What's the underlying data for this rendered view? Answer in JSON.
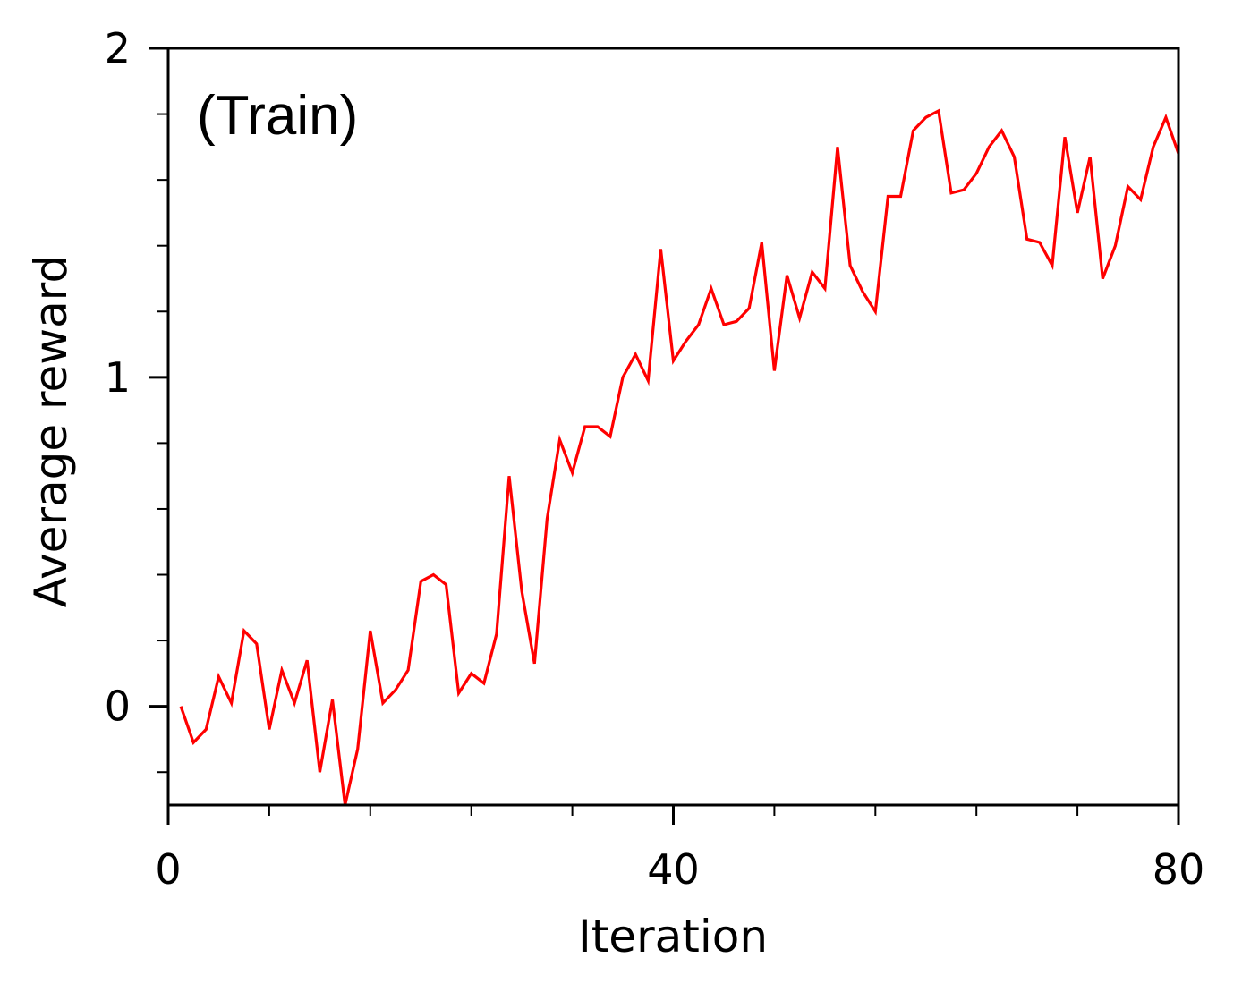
{
  "chart_data": {
    "type": "line",
    "title": "",
    "annotation": "(Train)",
    "xlabel": "Iteration",
    "ylabel": "Average reward",
    "xlim": [
      0,
      80
    ],
    "ylim": [
      -0.3,
      2
    ],
    "x_ticks": [
      {
        "value": 0,
        "label": "0"
      },
      {
        "value": 40,
        "label": "40"
      },
      {
        "value": 80,
        "label": "80"
      }
    ],
    "y_ticks": [
      {
        "value": 0,
        "label": "0"
      },
      {
        "value": 1,
        "label": "1"
      },
      {
        "value": 2,
        "label": "2"
      }
    ],
    "x_minor_step": 8,
    "y_minor_step": 0.2,
    "grid": false,
    "legend": "none",
    "line_color": "#ff0000",
    "series": [
      {
        "x": [
          1,
          2,
          3,
          4,
          5,
          6,
          7,
          8,
          9,
          10,
          11,
          12,
          13,
          14,
          15,
          16,
          17,
          18,
          19,
          20,
          21,
          22,
          23,
          24,
          25,
          26,
          27,
          28,
          29,
          30,
          31,
          32,
          33,
          34,
          35,
          36,
          37,
          38,
          39,
          40,
          41,
          42,
          43,
          44,
          45,
          46,
          47,
          48,
          49,
          50,
          51,
          52,
          53,
          54,
          55,
          56,
          57,
          58,
          59,
          60,
          61,
          62,
          63,
          64,
          65,
          66,
          67,
          68,
          69,
          70,
          71,
          72,
          73,
          74,
          75,
          76,
          77,
          78,
          79,
          80
        ],
        "values": [
          0.0,
          -0.11,
          -0.07,
          0.09,
          0.01,
          0.23,
          0.19,
          -0.07,
          0.11,
          0.01,
          0.14,
          -0.2,
          0.02,
          -0.3,
          -0.13,
          0.23,
          0.01,
          0.05,
          0.11,
          0.38,
          0.4,
          0.37,
          0.04,
          0.1,
          0.07,
          0.22,
          0.7,
          0.35,
          0.13,
          0.57,
          0.81,
          0.71,
          0.85,
          0.85,
          0.82,
          1.0,
          1.07,
          0.99,
          1.39,
          1.05,
          1.11,
          1.16,
          1.27,
          1.16,
          1.17,
          1.21,
          1.41,
          1.02,
          1.31,
          1.18,
          1.32,
          1.27,
          1.7,
          1.34,
          1.26,
          1.2,
          1.55,
          1.55,
          1.75,
          1.79,
          1.81,
          1.56,
          1.57,
          1.62,
          1.7,
          1.75,
          1.67,
          1.42,
          1.41,
          1.34,
          1.73,
          1.5,
          1.67,
          1.3,
          1.4,
          1.58,
          1.54,
          1.7,
          1.79,
          1.68
        ]
      }
    ]
  }
}
